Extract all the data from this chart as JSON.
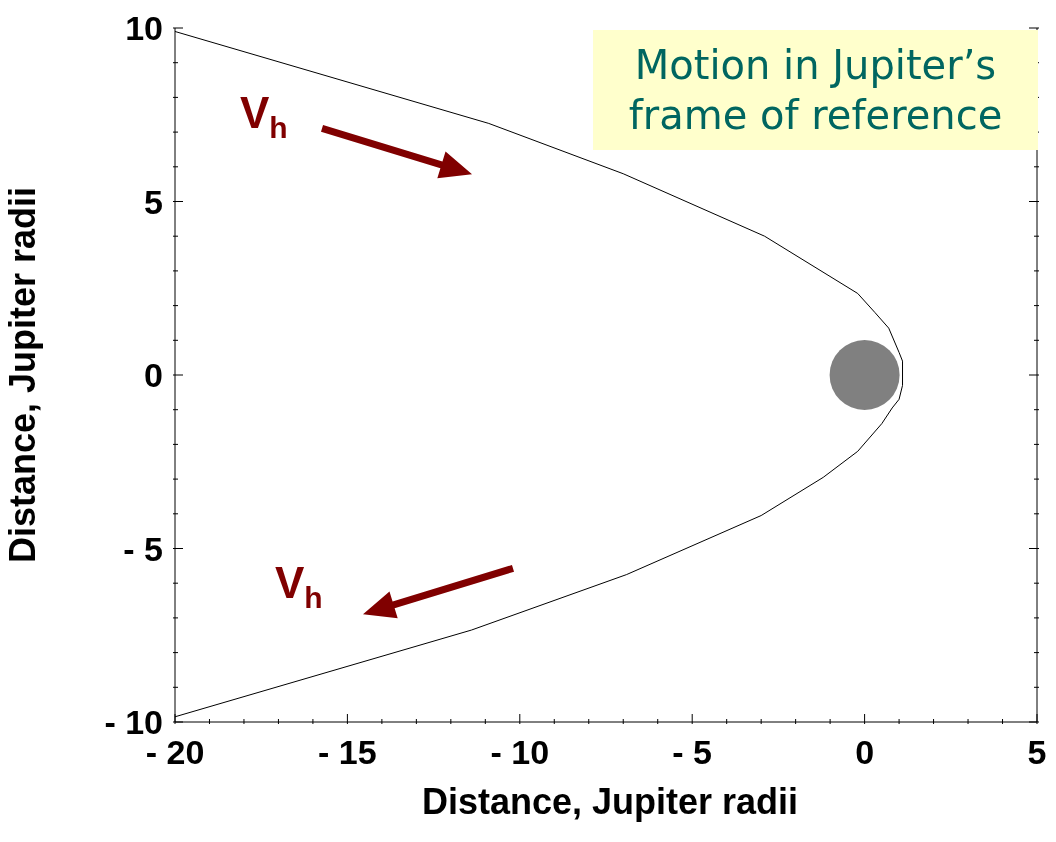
{
  "chart_data": {
    "type": "line",
    "xlabel": "Distance, Jupiter radii",
    "ylabel": "Distance, Jupiter radii",
    "annotations": [
      "V$_{h}$",
      "V$_{h}$",
      "Motion in Jupiter’s frame of reference"
    ],
    "xlim": [
      -20,
      5
    ],
    "ylim": [
      -10,
      10
    ],
    "xticks": [
      {
        "value": -20,
        "label": "- 20"
      },
      {
        "value": -19,
        "label": null
      },
      {
        "value": -18,
        "label": null
      },
      {
        "value": -17,
        "label": null
      },
      {
        "value": -16,
        "label": null
      },
      {
        "value": -15,
        "label": "- 15"
      },
      {
        "value": -14,
        "label": null
      },
      {
        "value": -13,
        "label": null
      },
      {
        "value": -12,
        "label": null
      },
      {
        "value": -11,
        "label": null
      },
      {
        "value": -10,
        "label": "- 10"
      },
      {
        "value": -9,
        "label": null
      },
      {
        "value": -8,
        "label": null
      },
      {
        "value": -7,
        "label": null
      },
      {
        "value": -6,
        "label": null
      },
      {
        "value": -5,
        "label": "- 5"
      },
      {
        "value": -4,
        "label": null
      },
      {
        "value": -3,
        "label": null
      },
      {
        "value": -2,
        "label": null
      },
      {
        "value": -1,
        "label": null
      },
      0,
      {
        "value": 1,
        "label": null
      },
      {
        "value": 2,
        "label": null
      },
      {
        "value": 3,
        "label": null
      },
      {
        "value": 4,
        "label": null
      },
      5
    ],
    "yticks": [
      {
        "value": -10,
        "label": "- 10"
      },
      {
        "value": -9,
        "label": null
      },
      {
        "value": -8,
        "label": null
      },
      {
        "value": -7,
        "label": null
      },
      {
        "value": -6,
        "label": null
      },
      {
        "value": -5,
        "label": "- 5"
      },
      {
        "value": -4,
        "label": null
      },
      {
        "value": -3,
        "label": null
      },
      {
        "value": -2,
        "label": null
      },
      {
        "value": -1,
        "label": null
      },
      0,
      {
        "value": 1,
        "label": null
      },
      {
        "value": 2,
        "label": null
      },
      {
        "value": 3,
        "label": null
      },
      {
        "value": 4,
        "label": null
      },
      5,
      {
        "value": 6,
        "label": null
      },
      {
        "value": 7,
        "label": null
      },
      {
        "value": 8,
        "label": null
      },
      {
        "value": 9,
        "label": null
      },
      10
    ],
    "series": [
      {
        "color": "#000000",
        "marker": "none",
        "x": [
          -20,
          -10.9,
          -7,
          -2.9,
          -0.2,
          0.3,
          0.7,
          1.0,
          1.1,
          1.1,
          1.0,
          0.8,
          0.5,
          -0.2,
          -1.2,
          -3.0,
          -6.9,
          -11.4,
          -20
        ],
        "values": [
          9.9,
          7.25,
          5.8,
          4.0,
          2.35,
          1.8,
          1.35,
          0.65,
          0.4,
          -0.3,
          -0.7,
          -0.95,
          -1.4,
          -2.2,
          -2.95,
          -4.05,
          -5.75,
          -7.35,
          -9.85
        ]
      },
      {
        "type": "scatter",
        "color": "#808080",
        "marker": "circle",
        "x": [
          0
        ],
        "values": [
          0
        ]
      }
    ]
  }
}
